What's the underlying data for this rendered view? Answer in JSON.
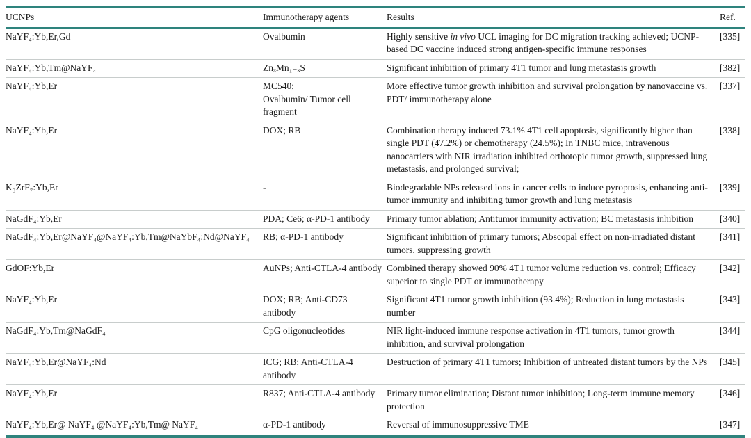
{
  "colors": {
    "rule_teal": "#2e837d",
    "rule_teal_dark": "#1e5f5a",
    "row_divider": "#c8cdcc",
    "text": "#1c1c1c"
  },
  "table": {
    "columns": [
      {
        "label": "UCNPs"
      },
      {
        "label": "Immunotherapy agents"
      },
      {
        "label": "Results"
      },
      {
        "label": "Ref."
      }
    ],
    "rows": [
      {
        "ucnp": "NaYF₄:Yb,Er,Gd",
        "agents": "Ovalbumin",
        "results_segments": [
          {
            "text": "Highly sensitive ",
            "italic": false
          },
          {
            "text": "in vivo",
            "italic": true
          },
          {
            "text": " UCL imaging for DC migration tracking achieved; UCNP-based DC vaccine induced strong antigen-specific immune responses",
            "italic": false
          }
        ],
        "ref": "[335]"
      },
      {
        "ucnp": "NaYF₄:Yb,Tm@NaYF₄",
        "agents": "ZnₓMn₁₋ₓS",
        "results": "Significant inhibition of primary 4T1 tumor and lung metastasis growth",
        "ref": "[382]"
      },
      {
        "ucnp": "NaYF₄:Yb,Er",
        "agents": "MC540;\nOvalbumin/ Tumor cell fragment",
        "results": "More effective tumor growth inhibition and survival prolongation by nanovaccine vs. PDT/ immunotherapy alone",
        "ref": "[337]"
      },
      {
        "ucnp": "NaYF₄:Yb,Er",
        "agents": "DOX; RB",
        "results": "Combination therapy induced 73.1% 4T1 cell apoptosis, significantly higher than single PDT (47.2%) or chemotherapy (24.5%); In TNBC mice, intravenous nanocarriers with NIR irradiation inhibited orthotopic tumor growth, suppressed lung metastasis, and prolonged survival;",
        "ref": "[338]"
      },
      {
        "ucnp": "K₃ZrF₇:Yb,Er",
        "agents": "-",
        "results": "Biodegradable NPs released ions in cancer cells to induce pyroptosis, enhancing anti-tumor immunity and inhibiting tumor growth and lung metastasis",
        "ref": "[339]"
      },
      {
        "ucnp": "NaGdF₄:Yb,Er",
        "agents": "PDA; Ce6; α-PD-1 antibody",
        "results": "Primary tumor ablation; Antitumor immunity activation; BC metastasis inhibition",
        "ref": "[340]"
      },
      {
        "ucnp": "NaGdF₄:Yb,Er@NaYF₄@NaYF₄:Yb,Tm@NaYbF₄:Nd@NaYF₄",
        "agents": "RB; α-PD-1 antibody",
        "results": "Significant inhibition of primary tumors; Abscopal effect on non-irradiated distant tumors, suppressing growth",
        "ref": "[341]"
      },
      {
        "ucnp": "GdOF:Yb,Er",
        "agents": "AuNPs; Anti-CTLA-4 antibody",
        "results": "Combined therapy showed 90% 4T1 tumor volume reduction vs. control; Efficacy superior to single PDT or immunotherapy",
        "ref": "[342]"
      },
      {
        "ucnp": "NaYF₄:Yb,Er",
        "agents": "DOX; RB; Anti-CD73 antibody",
        "results": "Significant 4T1 tumor growth inhibition (93.4%); Reduction in lung metastasis number",
        "ref": "[343]"
      },
      {
        "ucnp": "NaGdF₄:Yb,Tm@NaGdF₄",
        "agents": "CpG oligonucleotides",
        "results": "NIR light-induced immune response activation in 4T1 tumors, tumor growth inhibition, and survival prolongation",
        "ref": "[344]"
      },
      {
        "ucnp": "NaYF₄:Yb,Er@NaYF₄:Nd",
        "agents": "ICG; RB; Anti-CTLA-4 antibody",
        "results": "Destruction of primary 4T1 tumors; Inhibition of untreated distant tumors by the NPs",
        "ref": "[345]"
      },
      {
        "ucnp": "NaYF₄:Yb,Er",
        "agents": "R837; Anti-CTLA-4 antibody",
        "results": "Primary tumor elimination; Distant tumor inhibition; Long-term immune memory protection",
        "ref": "[346]"
      },
      {
        "ucnp": "NaYF₄:Yb,Er@ NaYF₄ @NaYF₄:Yb,Tm@ NaYF₄",
        "agents": "α-PD-1 antibody",
        "results": "Reversal of immunosuppressive TME",
        "ref": "[347]"
      }
    ]
  }
}
